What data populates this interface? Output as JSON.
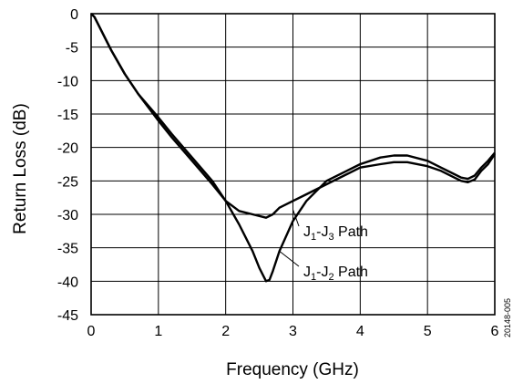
{
  "chart_data": {
    "type": "line",
    "title": "",
    "xlabel": "Frequency (GHz)",
    "ylabel": "Return Loss (dB)",
    "xlim": [
      0,
      6
    ],
    "ylim": [
      -45,
      0
    ],
    "xticks": [
      0,
      1,
      2,
      3,
      4,
      5,
      6
    ],
    "yticks": [
      0,
      -5,
      -10,
      -15,
      -20,
      -25,
      -30,
      -35,
      -40,
      -45
    ],
    "grid": true,
    "legend": "none",
    "series": [
      {
        "name": "J1-J3 Path",
        "x": [
          0,
          0.05,
          0.1,
          0.2,
          0.3,
          0.5,
          0.7,
          1.0,
          1.2,
          1.5,
          1.8,
          2.0,
          2.2,
          2.4,
          2.6,
          2.7,
          2.8,
          3.0,
          3.2,
          3.5,
          3.8,
          4.0,
          4.3,
          4.5,
          4.7,
          5.0,
          5.2,
          5.4,
          5.5,
          5.6,
          5.7,
          5.8,
          5.9,
          6.0
        ],
        "y": [
          0,
          -0.5,
          -1.5,
          -3.5,
          -5.5,
          -9.0,
          -12.0,
          -16.0,
          -18.5,
          -22.0,
          -25.5,
          -28.0,
          -29.5,
          -30.0,
          -30.5,
          -30.0,
          -29.0,
          -28.0,
          -27.0,
          -25.5,
          -24.0,
          -23.0,
          -22.5,
          -22.2,
          -22.2,
          -22.8,
          -23.5,
          -24.5,
          -25.0,
          -25.2,
          -24.8,
          -23.5,
          -22.5,
          -21.0
        ]
      },
      {
        "name": "J1-J2 Path",
        "x": [
          0,
          0.05,
          0.1,
          0.2,
          0.3,
          0.5,
          0.7,
          1.0,
          1.2,
          1.5,
          1.8,
          2.0,
          2.2,
          2.4,
          2.5,
          2.6,
          2.65,
          2.7,
          2.8,
          3.0,
          3.2,
          3.5,
          3.8,
          4.0,
          4.3,
          4.5,
          4.7,
          5.0,
          5.2,
          5.4,
          5.5,
          5.6,
          5.7,
          5.8,
          5.9,
          6.0
        ],
        "y": [
          0,
          -0.5,
          -1.5,
          -3.5,
          -5.5,
          -9.0,
          -12.0,
          -15.5,
          -18.0,
          -21.5,
          -25.0,
          -28.0,
          -31.5,
          -35.5,
          -38.0,
          -40.0,
          -39.8,
          -38.5,
          -35.5,
          -31.0,
          -28.0,
          -25.0,
          -23.5,
          -22.5,
          -21.5,
          -21.2,
          -21.2,
          -22.0,
          -23.0,
          -24.0,
          -24.5,
          -24.7,
          -24.2,
          -23.0,
          -22.0,
          -20.8
        ]
      }
    ],
    "annotations": [
      {
        "text": "J",
        "sub1": "1",
        "mid": "-J",
        "sub2": "3",
        "tail": " Path",
        "target_x": 3.0,
        "target_y": -29.3
      },
      {
        "text": "J",
        "sub1": "1",
        "mid": "-J",
        "sub2": "2",
        "tail": " Path",
        "target_x": 2.8,
        "target_y": -35.5
      }
    ],
    "figure_id": "20148-005"
  }
}
